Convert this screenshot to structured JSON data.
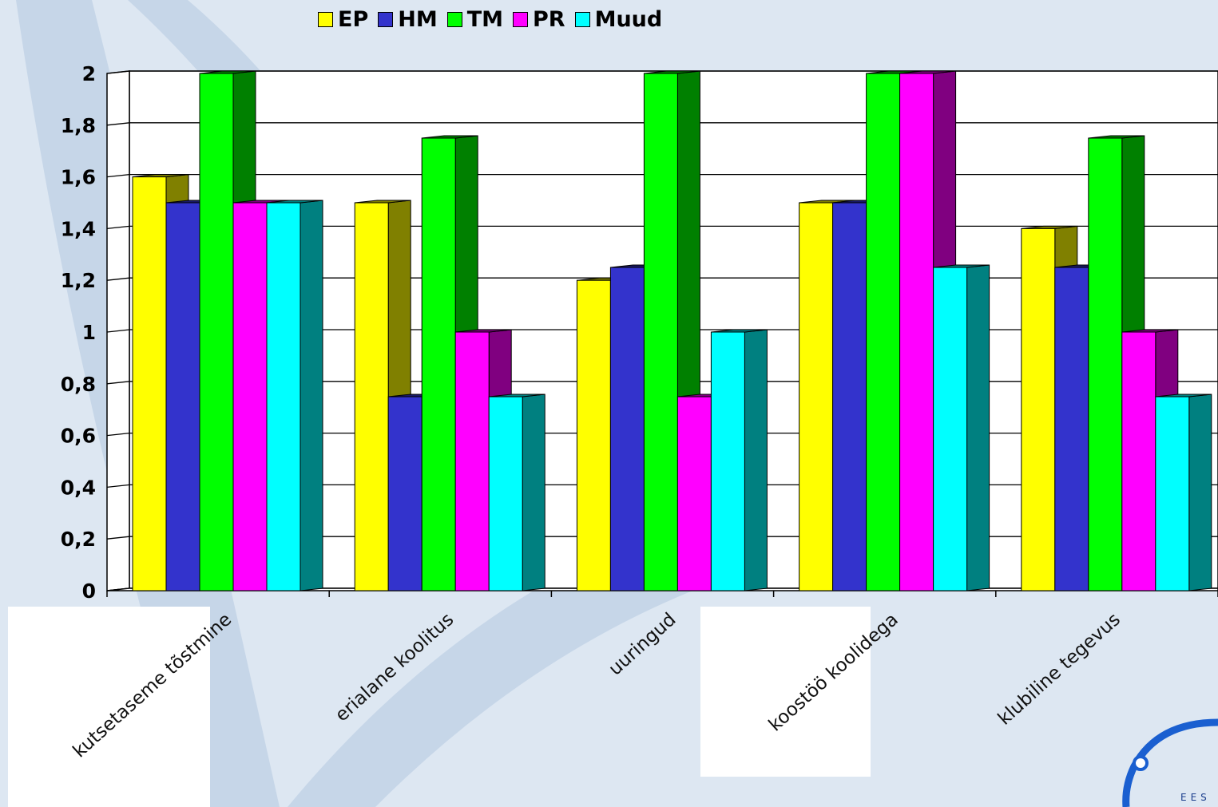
{
  "chart_data": {
    "type": "bar",
    "title": "",
    "xlabel": "",
    "ylabel": "",
    "ylim": [
      0,
      2
    ],
    "yticks": [
      "0",
      "0,2",
      "0,4",
      "0,6",
      "0,8",
      "1",
      "1,2",
      "1,4",
      "1,6",
      "1,8",
      "2"
    ],
    "categories": [
      "kutsetaseme tõstmine",
      "erialane koolitus",
      "uuringud",
      "koostöö koolidega",
      "klubiline tegevus"
    ],
    "series": [
      {
        "name": "EP",
        "color": "#ffff00",
        "side": "#808000",
        "values": [
          1.6,
          1.5,
          1.2,
          1.5,
          1.4
        ]
      },
      {
        "name": "HM",
        "color": "#3333cc",
        "side": "#1a1a66",
        "values": [
          1.5,
          0.75,
          1.25,
          1.5,
          1.25
        ]
      },
      {
        "name": "TM",
        "color": "#00ff00",
        "side": "#008000",
        "values": [
          2,
          1.75,
          2,
          2,
          1.75
        ]
      },
      {
        "name": "PR",
        "color": "#ff00ff",
        "side": "#800080",
        "values": [
          1.5,
          1,
          0.75,
          2,
          1
        ]
      },
      {
        "name": "Muud",
        "color": "#00ffff",
        "side": "#008080",
        "values": [
          1.5,
          0.75,
          1,
          1.25,
          0.75
        ]
      }
    ],
    "grid": true,
    "legend_position": "top",
    "three_d": true
  },
  "logo": {
    "text": "EES",
    "icon": "ring-logo-icon",
    "color": "#1a5fd0"
  }
}
